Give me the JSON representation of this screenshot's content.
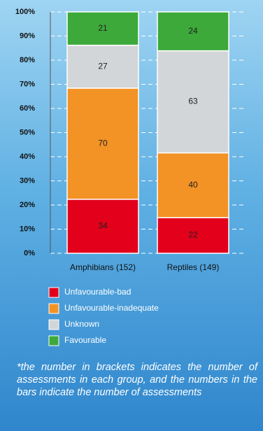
{
  "chart_data": {
    "type": "bar",
    "stack": "percent",
    "categories": [
      "Amphibians (152)",
      "Reptiles (149)"
    ],
    "series": [
      {
        "name": "Unfavourable-bad",
        "color": "#e3001b",
        "values": [
          34,
          22
        ]
      },
      {
        "name": "Unfavourable-inadequate",
        "color": "#f39325",
        "values": [
          70,
          40
        ]
      },
      {
        "name": "Unknown",
        "color": "#d3d6d8",
        "values": [
          27,
          63
        ]
      },
      {
        "name": "Favourable",
        "color": "#3ca93a",
        "values": [
          21,
          24
        ]
      }
    ],
    "ylim": [
      0,
      100
    ],
    "yticks": [
      {
        "value": 0,
        "label": "0%"
      },
      {
        "value": 10,
        "label": "10%"
      },
      {
        "value": 20,
        "label": "20%"
      },
      {
        "value": 30,
        "label": "30%"
      },
      {
        "value": 40,
        "label": "40%"
      },
      {
        "value": 50,
        "label": "50%"
      },
      {
        "value": 60,
        "label": "60%"
      },
      {
        "value": 70,
        "label": "70%"
      },
      {
        "value": 80,
        "label": "80%"
      },
      {
        "value": 90,
        "label": "90%"
      },
      {
        "value": 100,
        "label": "100%"
      }
    ],
    "grid": true,
    "note": "*the number in brackets indicates the number of assessments in each group, and the numbers in the bars indicate the number of assessments"
  }
}
